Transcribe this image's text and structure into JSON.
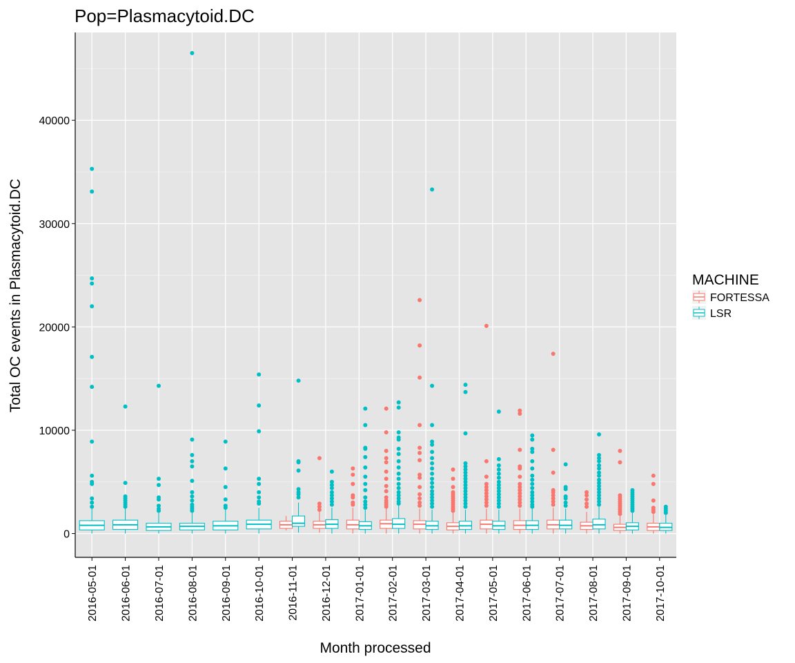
{
  "chart_data": {
    "type": "boxplot",
    "title": "Pop=Plasmacytoid.DC",
    "xlabel": "Month processed",
    "ylabel": "Total OC events in Plasmacytoid.DC",
    "ylim": [
      -2300,
      48500
    ],
    "yticks": [
      0,
      10000,
      20000,
      30000,
      40000
    ],
    "grid": true,
    "legend": {
      "title": "MACHINE",
      "placement": "right",
      "items": [
        {
          "name": "FORTESSA",
          "color": "#F8766D"
        },
        {
          "name": "LSR",
          "color": "#00BFC4"
        }
      ]
    },
    "categories": [
      "2016-05-01",
      "2016-06-01",
      "2016-07-01",
      "2016-08-01",
      "2016-09-01",
      "2016-10-01",
      "2016-11-01",
      "2016-12-01",
      "2017-01-01",
      "2017-02-01",
      "2017-03-01",
      "2017-04-01",
      "2017-05-01",
      "2017-06-01",
      "2017-07-01",
      "2017-08-01",
      "2017-09-01",
      "2017-10-01"
    ],
    "boxes": [
      {
        "category": "2016-05-01",
        "machine": "LSR",
        "q1": 350,
        "median": 800,
        "q3": 1250,
        "whisker_low": 0,
        "whisker_high": 2400,
        "outliers": [
          35300,
          33100,
          24700,
          24200,
          22000,
          17100,
          14200,
          8900,
          5600,
          5000,
          4800,
          3400,
          3000,
          2600
        ]
      },
      {
        "category": "2016-06-01",
        "machine": "LSR",
        "q1": 400,
        "median": 850,
        "q3": 1300,
        "whisker_low": 0,
        "whisker_high": 2500,
        "outliers": [
          12300,
          4900,
          3600,
          3400,
          3200,
          3000,
          2800,
          2600
        ]
      },
      {
        "category": "2016-07-01",
        "machine": "LSR",
        "q1": 300,
        "median": 650,
        "q3": 1000,
        "whisker_low": 0,
        "whisker_high": 2000,
        "outliers": [
          14300,
          5300,
          4700,
          3500,
          3300,
          2700,
          2400,
          2200
        ]
      },
      {
        "category": "2016-08-01",
        "machine": "LSR",
        "q1": 350,
        "median": 700,
        "q3": 1000,
        "whisker_low": 0,
        "whisker_high": 2000,
        "outliers": [
          46500,
          9100,
          7600,
          7000,
          6500,
          5100,
          4000,
          3600,
          3200,
          2800,
          2600,
          2400,
          2200
        ]
      },
      {
        "category": "2016-09-01",
        "machine": "LSR",
        "q1": 350,
        "median": 750,
        "q3": 1200,
        "whisker_low": 0,
        "whisker_high": 2400,
        "outliers": [
          8900,
          6300,
          4500,
          3300,
          2700,
          2500
        ]
      },
      {
        "category": "2016-10-01",
        "machine": "LSR",
        "q1": 450,
        "median": 900,
        "q3": 1300,
        "whisker_low": 0,
        "whisker_high": 2500,
        "outliers": [
          15400,
          12400,
          9900,
          5300,
          4800,
          4000,
          3500,
          3100,
          2900
        ]
      },
      {
        "category": "2016-11-01",
        "machine": "FORTESSA",
        "q1": 500,
        "median": 850,
        "q3": 1200,
        "whisker_low": 300,
        "whisker_high": 1700,
        "outliers": []
      },
      {
        "category": "2016-11-01",
        "machine": "LSR",
        "q1": 700,
        "median": 1000,
        "q3": 1700,
        "whisker_low": 100,
        "whisker_high": 3000,
        "outliers": [
          14800,
          7000,
          6900,
          6100,
          4300,
          4000,
          3800,
          3500
        ]
      },
      {
        "category": "2016-12-01",
        "machine": "FORTESSA",
        "q1": 500,
        "median": 850,
        "q3": 1200,
        "whisker_low": 100,
        "whisker_high": 2100,
        "outliers": [
          7300,
          2900,
          2600,
          2300
        ]
      },
      {
        "category": "2016-12-01",
        "machine": "LSR",
        "q1": 500,
        "median": 900,
        "q3": 1350,
        "whisker_low": 0,
        "whisker_high": 2500,
        "outliers": [
          6000,
          5000,
          4700,
          4400,
          4000,
          3700,
          3400,
          3100,
          2800
        ]
      },
      {
        "category": "2017-01-01",
        "machine": "FORTESSA",
        "q1": 450,
        "median": 850,
        "q3": 1300,
        "whisker_low": 0,
        "whisker_high": 2500,
        "outliers": [
          6300,
          5700,
          4800,
          3700,
          3500,
          3000,
          2800
        ]
      },
      {
        "category": "2017-01-01",
        "machine": "LSR",
        "q1": 400,
        "median": 750,
        "q3": 1150,
        "whisker_low": 0,
        "whisker_high": 2300,
        "outliers": [
          12100,
          10500,
          8300,
          8200,
          7400,
          6400,
          5500,
          4800,
          4200,
          3500,
          3100,
          2800,
          2500
        ]
      },
      {
        "category": "2017-02-01",
        "machine": "FORTESSA",
        "q1": 500,
        "median": 950,
        "q3": 1300,
        "whisker_low": 0,
        "whisker_high": 2400,
        "outliers": [
          12100,
          9800,
          8000,
          7300,
          6900,
          6000,
          5300,
          4600,
          4100,
          3500,
          3200,
          3000,
          2800,
          2600
        ]
      },
      {
        "category": "2017-02-01",
        "machine": "LSR",
        "q1": 500,
        "median": 900,
        "q3": 1450,
        "whisker_low": 0,
        "whisker_high": 2700,
        "outliers": [
          12700,
          12200,
          9800,
          9300,
          9100,
          8200,
          7700,
          7000,
          6400,
          5800,
          5300,
          4800,
          4400,
          4000,
          3700,
          3400,
          3100,
          2900
        ]
      },
      {
        "category": "2017-03-01",
        "machine": "FORTESSA",
        "q1": 450,
        "median": 900,
        "q3": 1250,
        "whisker_low": 0,
        "whisker_high": 2400,
        "outliers": [
          22600,
          18200,
          15100,
          10500,
          8300,
          7800,
          7100,
          5700,
          5400,
          4500,
          3800,
          3400,
          3000,
          2700
        ]
      },
      {
        "category": "2017-03-01",
        "machine": "LSR",
        "q1": 400,
        "median": 750,
        "q3": 1200,
        "whisker_low": 0,
        "whisker_high": 2300,
        "outliers": [
          33300,
          14300,
          10500,
          8900,
          8600,
          7900,
          7300,
          6800,
          6300,
          5800,
          5300,
          4900,
          4500,
          4100,
          3800,
          3500,
          3200,
          2900,
          2600
        ]
      },
      {
        "category": "2017-04-01",
        "machine": "FORTESSA",
        "q1": 350,
        "median": 700,
        "q3": 1050,
        "whisker_low": 0,
        "whisker_high": 2000,
        "outliers": [
          6200,
          5300,
          4500,
          4000,
          3800,
          3600,
          3400,
          3200,
          3000,
          2800,
          2600,
          2400,
          2200
        ]
      },
      {
        "category": "2017-04-01",
        "machine": "LSR",
        "q1": 400,
        "median": 750,
        "q3": 1200,
        "whisker_low": 0,
        "whisker_high": 2300,
        "outliers": [
          14400,
          13700,
          9700,
          6800,
          6500,
          6200,
          5900,
          5600,
          5300,
          5000,
          4700,
          4400,
          4100,
          3800,
          3500,
          3200,
          2900,
          2600
        ]
      },
      {
        "category": "2017-05-01",
        "machine": "FORTESSA",
        "q1": 450,
        "median": 900,
        "q3": 1300,
        "whisker_low": 0,
        "whisker_high": 2400,
        "outliers": [
          20100,
          7000,
          5500,
          4800,
          4500,
          4200,
          3900,
          3600,
          3300,
          3000,
          2700
        ]
      },
      {
        "category": "2017-05-01",
        "machine": "LSR",
        "q1": 400,
        "median": 750,
        "q3": 1200,
        "whisker_low": 0,
        "whisker_high": 2300,
        "outliers": [
          11800,
          7200,
          6600,
          6200,
          5800,
          5400,
          5000,
          4700,
          4400,
          4100,
          3800,
          3500,
          3200,
          2900,
          2600
        ]
      },
      {
        "category": "2017-06-01",
        "machine": "FORTESSA",
        "q1": 400,
        "median": 800,
        "q3": 1250,
        "whisker_low": 0,
        "whisker_high": 2400,
        "outliers": [
          11900,
          11600,
          8100,
          6500,
          6300,
          5500,
          4800,
          4500,
          4200,
          3900,
          3600,
          3300,
          3000,
          2700
        ]
      },
      {
        "category": "2017-06-01",
        "machine": "LSR",
        "q1": 400,
        "median": 800,
        "q3": 1250,
        "whisker_low": 0,
        "whisker_high": 2400,
        "outliers": [
          9500,
          9100,
          8200,
          7900,
          7000,
          6300,
          5600,
          5200,
          4800,
          4400,
          4000,
          3700,
          3400,
          3100,
          2800,
          2600
        ]
      },
      {
        "category": "2017-07-01",
        "machine": "FORTESSA",
        "q1": 450,
        "median": 850,
        "q3": 1300,
        "whisker_low": 0,
        "whisker_high": 2500,
        "outliers": [
          17400,
          8100,
          5900,
          4200,
          4000,
          3700,
          3400,
          3100,
          2800
        ]
      },
      {
        "category": "2017-07-01",
        "machine": "LSR",
        "q1": 450,
        "median": 800,
        "q3": 1300,
        "whisker_low": 0,
        "whisker_high": 2400,
        "outliers": [
          6700,
          4500,
          4300,
          3600,
          3400,
          3000,
          2700
        ]
      },
      {
        "category": "2017-08-01",
        "machine": "FORTESSA",
        "q1": 400,
        "median": 750,
        "q3": 1100,
        "whisker_low": 0,
        "whisker_high": 2100,
        "outliers": [
          4000,
          3700,
          3300,
          2900,
          2600
        ]
      },
      {
        "category": "2017-08-01",
        "machine": "LSR",
        "q1": 450,
        "median": 850,
        "q3": 1400,
        "whisker_low": 0,
        "whisker_high": 2600,
        "outliers": [
          9600,
          7600,
          7300,
          7000,
          6600,
          6300,
          5900,
          5600,
          5200,
          4900,
          4600,
          4300,
          4000,
          3700,
          3400,
          3100,
          2800
        ]
      },
      {
        "category": "2017-09-01",
        "machine": "FORTESSA",
        "q1": 300,
        "median": 600,
        "q3": 900,
        "whisker_low": 0,
        "whisker_high": 1700,
        "outliers": [
          8000,
          6900,
          3700,
          3500,
          3300,
          3100,
          2900,
          2700,
          2500,
          2300,
          2100,
          1900
        ]
      },
      {
        "category": "2017-09-01",
        "machine": "LSR",
        "q1": 350,
        "median": 700,
        "q3": 1050,
        "whisker_low": 0,
        "whisker_high": 2000,
        "outliers": [
          4200,
          4000,
          3800,
          3600,
          3400,
          3200,
          3000,
          2800,
          2600,
          2400,
          2200
        ]
      },
      {
        "category": "2017-10-01",
        "machine": "FORTESSA",
        "q1": 300,
        "median": 650,
        "q3": 1000,
        "whisker_low": 0,
        "whisker_high": 1900,
        "outliers": [
          5600,
          4800,
          3200,
          2500,
          2300,
          2100
        ]
      },
      {
        "category": "2017-10-01",
        "machine": "LSR",
        "q1": 300,
        "median": 600,
        "q3": 1000,
        "whisker_low": 0,
        "whisker_high": 1800,
        "outliers": [
          2600,
          2400,
          2200,
          2000
        ]
      }
    ]
  }
}
